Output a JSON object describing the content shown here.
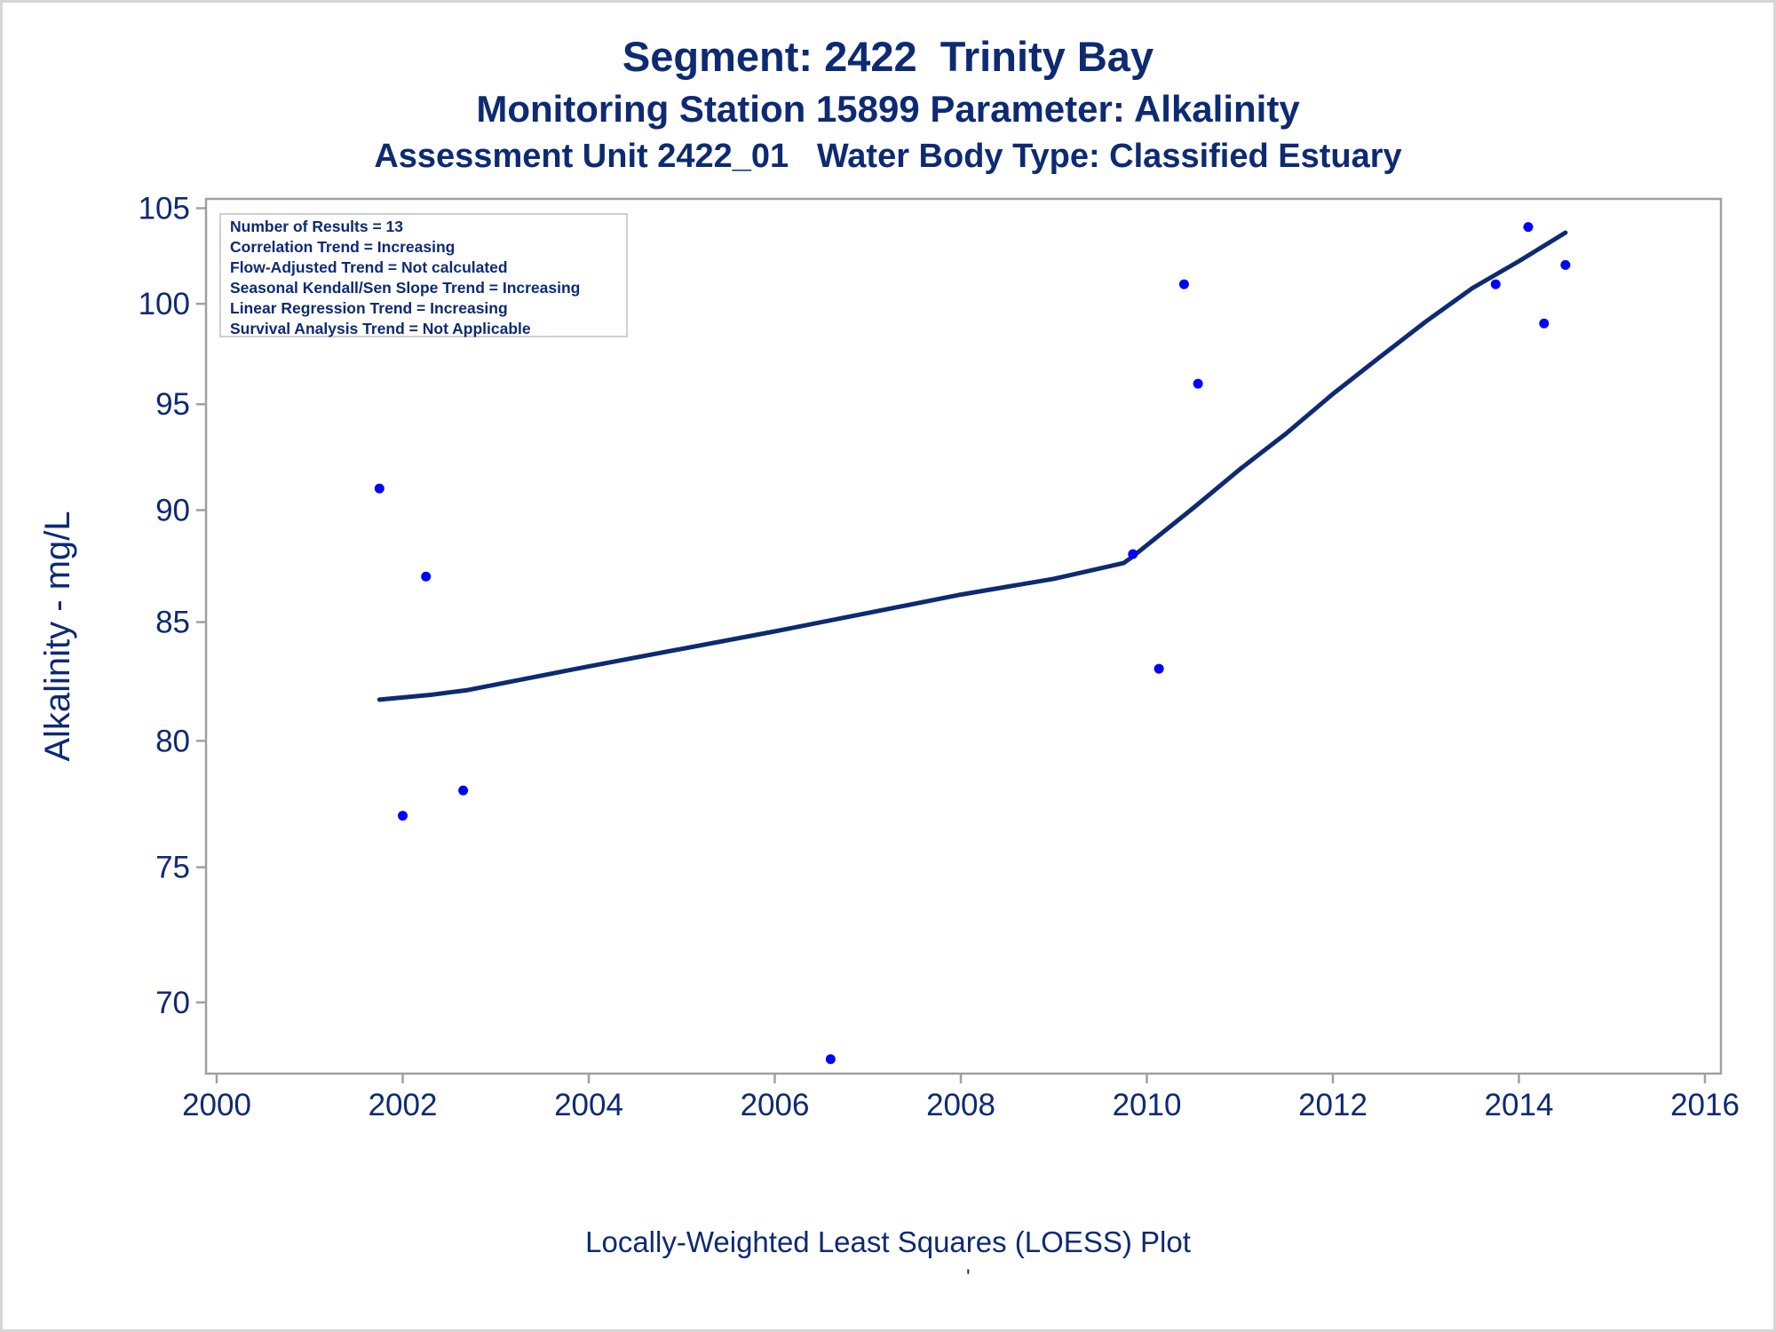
{
  "titles": {
    "line1": "Segment: 2422  Trinity Bay",
    "line2": "Monitoring Station 15899 Parameter: Alkalinity",
    "line3": "Assessment Unit 2422_01   Water Body Type: Classified Estuary"
  },
  "stats": [
    "Number of Results = 13",
    "Correlation Trend = Increasing",
    "Flow-Adjusted Trend = Not calculated",
    "Seasonal Kendall/Sen Slope Trend = Increasing",
    "Linear Regression Trend = Increasing",
    "Survival Analysis Trend = Not Applicable"
  ],
  "footnote": "Locally-Weighted Least Squares (LOESS) Plot",
  "footnote_mark": "'",
  "colors": {
    "text": "#0d2a73",
    "points": "#0000ff",
    "loess": "#0d2a73",
    "frame": "#a0a0a0"
  },
  "chart_data": {
    "type": "scatter",
    "ylabel": "Alkalinity - mg/L",
    "xlabel": "",
    "y_scale": "log",
    "xlim": [
      2000,
      2016
    ],
    "ylim": [
      67.5,
      105.5
    ],
    "x_ticks": [
      2000,
      2002,
      2004,
      2006,
      2008,
      2010,
      2012,
      2014,
      2016
    ],
    "y_ticks": [
      70,
      75,
      80,
      85,
      90,
      95,
      100,
      105
    ],
    "grid": false,
    "series": [
      {
        "kind": "points",
        "x": [
          2001.75,
          2002.0,
          2002.25,
          2002.65,
          2006.6,
          2009.85,
          2010.13,
          2010.4,
          2010.55,
          2013.75,
          2014.1,
          2014.27,
          2014.5
        ],
        "y": [
          91,
          77,
          87,
          78,
          68,
          88,
          83,
          101,
          96,
          101,
          104,
          99,
          102
        ]
      },
      {
        "kind": "loess",
        "x": [
          2001.75,
          2002.3,
          2002.7,
          2004.0,
          2006.0,
          2008.0,
          2009.0,
          2009.75,
          2009.85,
          2010.5,
          2011.0,
          2011.5,
          2012.0,
          2012.5,
          2013.0,
          2013.5,
          2014.0,
          2014.5
        ],
        "y": [
          81.7,
          81.9,
          82.1,
          83.1,
          84.6,
          86.2,
          86.9,
          87.6,
          87.9,
          90.1,
          91.9,
          93.6,
          95.5,
          97.3,
          99.1,
          100.8,
          102.2,
          103.7
        ]
      }
    ]
  }
}
